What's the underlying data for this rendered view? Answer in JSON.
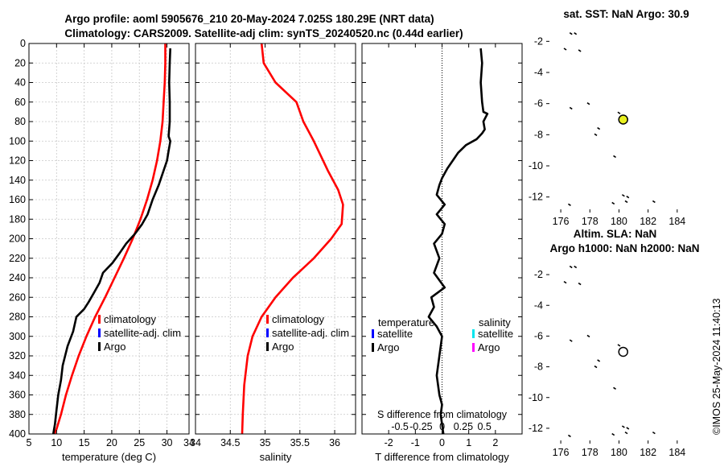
{
  "header": {
    "title_line1": "Argo profile: aoml 5905676_210 20-May-2024 7.025S 180.29E (NRT data)",
    "title_line2": "Climatology: CARS2009. Satellite-adj clim: synTS_20240520.nc (0.44d earlier)"
  },
  "watermark": "©IMOS 25-May-2024 11:40:13",
  "colors": {
    "argo": "#000000",
    "climatology": "#ff0000",
    "satellite": "#0000ff",
    "sat_salinity": "#00e5ee",
    "argo_salinity": "#ff00ff",
    "float_marker": "#e8f020"
  },
  "chart_data": [
    {
      "id": "temperature",
      "type": "line",
      "xlabel": "temperature (deg C)",
      "xlim": [
        5,
        34
      ],
      "ylim": [
        0,
        400
      ],
      "xticks": [
        5,
        10,
        15,
        20,
        25,
        30,
        34
      ],
      "yticks": [
        0,
        20,
        40,
        60,
        80,
        100,
        120,
        140,
        160,
        180,
        200,
        220,
        240,
        260,
        280,
        300,
        320,
        340,
        360,
        380,
        400
      ],
      "grid": true,
      "legend": [
        "climatology",
        "satellite-adj. clim",
        "Argo"
      ],
      "series": [
        {
          "name": "climatology",
          "color": "#ff0000",
          "x": [
            29.7,
            29.7,
            29.6,
            29.4,
            29.2,
            28.8,
            28.2,
            27.4,
            26.4,
            25.2,
            23.8,
            22.2,
            20.5,
            18.8,
            17.0,
            15.4,
            14.0,
            12.8,
            11.7,
            10.8,
            10.0,
            9.6
          ],
          "y": [
            0,
            20,
            40,
            60,
            80,
            100,
            120,
            140,
            160,
            180,
            200,
            220,
            240,
            260,
            280,
            300,
            320,
            340,
            360,
            380,
            395,
            400
          ]
        },
        {
          "name": "Argo",
          "color": "#000000",
          "x": [
            30.6,
            30.5,
            30.4,
            30.5,
            30.5,
            30.3,
            30.6,
            30.3,
            30.0,
            29.1,
            28.5,
            27.4,
            26.5,
            25.5,
            24.2,
            22.6,
            21.4,
            20.1,
            18.4,
            17.8,
            16.8,
            15.8,
            15.0,
            13.6,
            13.0,
            12.0,
            11.1,
            10.8,
            10.3,
            10.0,
            9.7,
            9.4
          ],
          "y": [
            5,
            20,
            40,
            60,
            80,
            95,
            100,
            110,
            120,
            135,
            145,
            160,
            175,
            185,
            195,
            205,
            215,
            225,
            235,
            245,
            255,
            265,
            272,
            280,
            295,
            310,
            330,
            345,
            360,
            375,
            390,
            400
          ]
        }
      ]
    },
    {
      "id": "salinity",
      "type": "line",
      "xlabel": "salinity",
      "xlim": [
        34,
        36.3
      ],
      "ylim": [
        0,
        400
      ],
      "xticks": [
        34,
        34.5,
        35,
        35.5,
        36
      ],
      "xticklabels": [
        "34",
        "34.5",
        "35",
        "35.5",
        "36"
      ],
      "grid": true,
      "legend": [
        "climatology",
        "satellite-adj. clim",
        "Argo"
      ],
      "series": [
        {
          "name": "climatology",
          "color": "#ff0000",
          "x": [
            34.95,
            34.98,
            35.15,
            35.45,
            35.55,
            35.7,
            35.9,
            36.05,
            36.12,
            36.1,
            35.95,
            35.7,
            35.4,
            35.15,
            34.95,
            34.82,
            34.75,
            34.7,
            34.68,
            34.67
          ],
          "y": [
            0,
            20,
            40,
            60,
            80,
            100,
            130,
            150,
            165,
            185,
            200,
            220,
            240,
            260,
            280,
            300,
            320,
            350,
            380,
            400
          ]
        }
      ]
    },
    {
      "id": "difference",
      "type": "line",
      "xlabel": "T difference from climatology",
      "top_label": "S difference from climatology",
      "xlim": [
        -3,
        3
      ],
      "ylim": [
        0,
        400
      ],
      "xticks": [
        -2,
        -1,
        0,
        1,
        2
      ],
      "top_xticks": [
        -0.5,
        -0.25,
        0,
        0.25,
        0.5
      ],
      "top_xticklabels": [
        "-0.5",
        "-0.25",
        "0",
        "0.25",
        "0.5"
      ],
      "zero_line": "dotted",
      "legend_temperature_title": "temperature",
      "legend_salinity_title": "salinity",
      "legend_temperature": [
        "satellite",
        "Argo"
      ],
      "legend_salinity": [
        "satellite",
        "Argo"
      ],
      "series": [
        {
          "name": "Argo T difference",
          "color": "#000000",
          "x": [
            1.45,
            1.5,
            1.45,
            1.5,
            1.55,
            1.7,
            1.55,
            1.6,
            1.5,
            1.3,
            0.9,
            0.6,
            0.4,
            0.2,
            0.0,
            -0.1,
            -0.2,
            0.1,
            -0.2,
            0.1,
            0.0,
            -0.3,
            -0.1,
            -0.3,
            0.1,
            -0.4,
            -0.3,
            -0.5,
            -0.2,
            0.0,
            -0.1,
            -0.2,
            -0.1,
            0.0,
            -0.05,
            0.0,
            0.05
          ],
          "y": [
            5,
            20,
            40,
            60,
            70,
            72,
            80,
            88,
            92,
            98,
            104,
            112,
            120,
            128,
            138,
            145,
            155,
            165,
            175,
            185,
            195,
            205,
            220,
            235,
            250,
            260,
            270,
            280,
            290,
            300,
            320,
            340,
            360,
            370,
            380,
            390,
            400
          ]
        }
      ]
    },
    {
      "id": "map_sst",
      "type": "scatter",
      "title": "sat. SST: NaN Argo: 30.9",
      "xlim": [
        175,
        186
      ],
      "ylim": [
        -13,
        -1
      ],
      "xticks": [
        176,
        178,
        180,
        182,
        184
      ],
      "yticks": [
        -2,
        -4,
        -6,
        -8,
        -10,
        -12
      ],
      "float": {
        "lon": 180.29,
        "lat": -7.025,
        "filled": true
      },
      "coast_lon": [
        176.7,
        177.0,
        176.3,
        177.3,
        177.9,
        176.7,
        180.0,
        178.4,
        178.6,
        179.7,
        180.3,
        180.6,
        176.6,
        179.6,
        180.5,
        182.4
      ],
      "coast_lat": [
        -1.5,
        -1.5,
        -2.5,
        -2.6,
        -6.0,
        -6.3,
        -6.6,
        -8.0,
        -7.6,
        -9.4,
        -11.9,
        -12.0,
        -12.5,
        -12.4,
        -12.3,
        -12.3
      ]
    },
    {
      "id": "map_sla",
      "type": "scatter",
      "title": "Altim. SLA: NaN",
      "title2": "Argo h1000: NaN h2000: NaN",
      "xlim": [
        175,
        186
      ],
      "ylim": [
        -13,
        -1
      ],
      "xticks": [
        176,
        178,
        180,
        182,
        184
      ],
      "yticks": [
        -2,
        -4,
        -6,
        -8,
        -10,
        -12
      ],
      "float": {
        "lon": 180.29,
        "lat": -7.025,
        "filled": false
      },
      "coast_lon": [
        176.7,
        177.0,
        176.3,
        177.3,
        177.9,
        176.7,
        180.0,
        178.4,
        178.6,
        179.7,
        180.3,
        180.6,
        176.6,
        179.6,
        180.5,
        182.4
      ],
      "coast_lat": [
        -1.5,
        -1.5,
        -2.5,
        -2.6,
        -6.0,
        -6.3,
        -6.6,
        -8.0,
        -7.6,
        -9.4,
        -11.9,
        -12.0,
        -12.5,
        -12.4,
        -12.3,
        -12.3
      ]
    }
  ]
}
